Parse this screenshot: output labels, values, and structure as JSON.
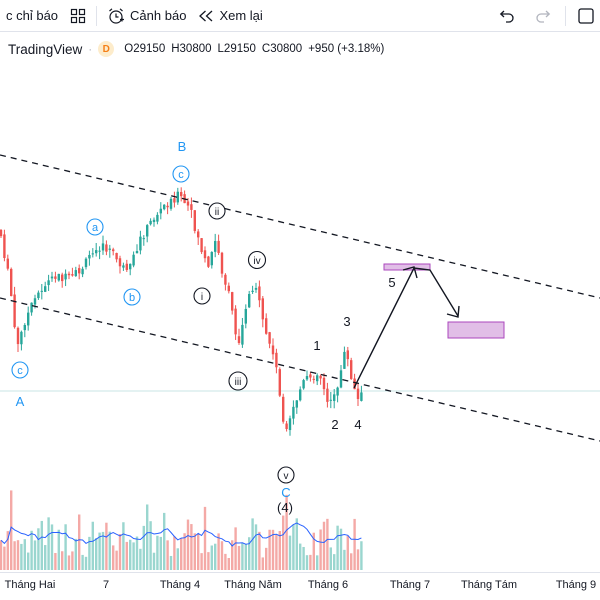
{
  "toolbar": {
    "indicators_label": "c chỉ báo",
    "alert_label": "Cảnh báo",
    "replay_label": "Xem lại",
    "undo_icon": "undo-icon",
    "redo_icon": "redo-icon"
  },
  "legend": {
    "symbol": "TradingView",
    "interval": "D",
    "open": "O29150",
    "high": "H30800",
    "low": "L29150",
    "close": "C30800",
    "change": "+950 (+3.18%)"
  },
  "colors": {
    "up": "#26a69a",
    "down": "#ef5350",
    "vol_up": "#9ad6cf",
    "vol_down": "#f4a9a6",
    "ma": "#2962ff",
    "wave_circle": "#2196f3",
    "zone": "#e1bee7",
    "zone_border": "#ab47bc"
  },
  "time_axis": [
    "Tháng Hai",
    "7",
    "Tháng 4",
    "Tháng Năm",
    "Tháng 6",
    "Tháng 7",
    "Tháng Tám",
    "Tháng 9"
  ],
  "waves": {
    "A": "A",
    "B": "B",
    "C": "C",
    "paren4": "(4)",
    "a": "a",
    "b": "b",
    "c_left": "c",
    "c_top": "c",
    "i": "i",
    "ii": "ii",
    "iii": "iii",
    "iv": "iv",
    "v": "v",
    "n1": "1",
    "n2": "2",
    "n3": "3",
    "n4": "4",
    "n5": "5"
  }
}
